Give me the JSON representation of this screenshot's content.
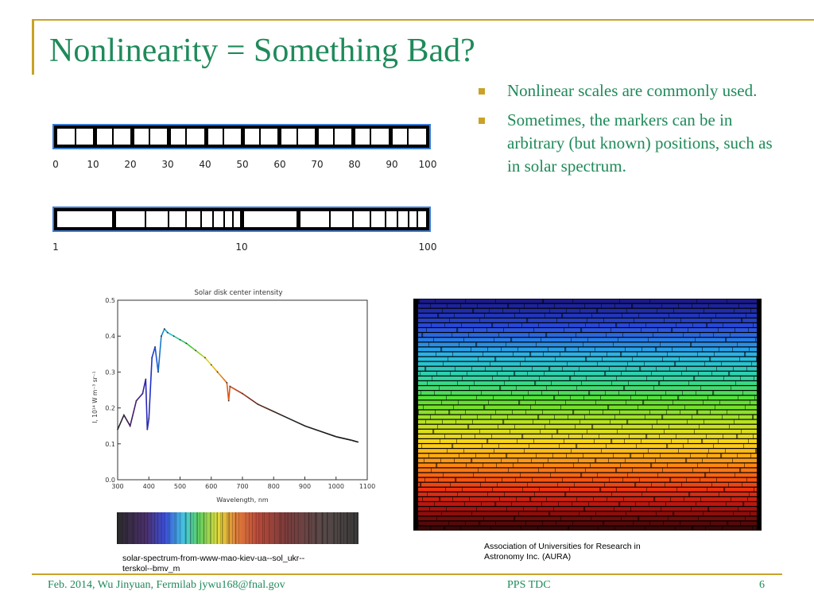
{
  "slide": {
    "title": "Nonlinearity = Something Bad?",
    "bullets": [
      "Nonlinear scales are commonly used.",
      "Sometimes, the markers can be in arbitrary (but known) positions, such as in solar spectrum."
    ],
    "colors": {
      "title": "#1f8a5a",
      "accent": "#c9a227",
      "bar_outline": "#3a7bd5"
    }
  },
  "scales": {
    "linear": {
      "labels": [
        "0",
        "10",
        "20",
        "30",
        "40",
        "50",
        "60",
        "70",
        "80",
        "90",
        "100"
      ]
    },
    "log": {
      "labels": [
        "1",
        "10",
        "100"
      ]
    }
  },
  "chart_data": {
    "type": "line",
    "title": "Solar disk center intensity",
    "xlabel": "Wavelength, nm",
    "ylabel": "I, 10¹⁴ W m⁻³ sr⁻¹",
    "xlim": [
      300,
      1100
    ],
    "ylim": [
      0.0,
      0.5
    ],
    "xticks": [
      300,
      400,
      500,
      600,
      700,
      800,
      900,
      1000,
      1100
    ],
    "yticks": [
      0.0,
      0.1,
      0.2,
      0.3,
      0.4,
      0.5
    ],
    "x": [
      300,
      320,
      340,
      360,
      380,
      390,
      395,
      400,
      410,
      420,
      430,
      440,
      450,
      460,
      480,
      500,
      520,
      550,
      580,
      600,
      620,
      650,
      656,
      660,
      700,
      750,
      800,
      850,
      900,
      950,
      1000,
      1050,
      1070
    ],
    "y": [
      0.14,
      0.18,
      0.15,
      0.22,
      0.24,
      0.28,
      0.14,
      0.17,
      0.34,
      0.37,
      0.3,
      0.4,
      0.42,
      0.41,
      0.4,
      0.39,
      0.38,
      0.36,
      0.34,
      0.32,
      0.3,
      0.27,
      0.22,
      0.26,
      0.24,
      0.21,
      0.19,
      0.17,
      0.15,
      0.135,
      0.12,
      0.11,
      0.105
    ]
  },
  "captions": {
    "left": "solar-spectrum-from-www-mao-kiev-ua--sol_ukr--terskol--bmv_m",
    "right": "Association of Universities for Research in Astronomy Inc. (AURA)"
  },
  "footer": {
    "left": "Feb. 2014, Wu Jinyuan, Fermilab jywu168@fnal.gov",
    "center": "PPS TDC",
    "page": "6"
  }
}
